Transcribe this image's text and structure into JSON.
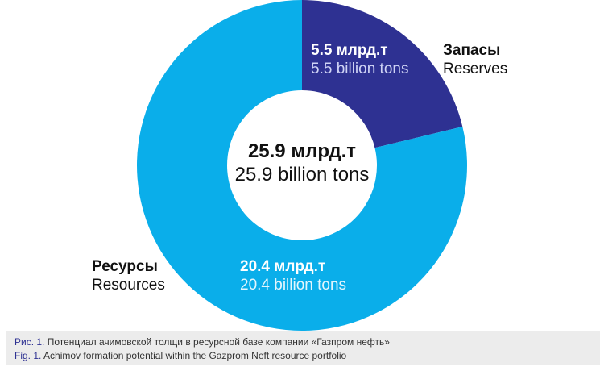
{
  "chart_data": {
    "type": "pie",
    "donut": true,
    "slices": [
      {
        "name": "Запасы / Reserves",
        "value": 5.5,
        "color": "#2e3192"
      },
      {
        "name": "Ресурсы / Resources",
        "value": 20.4,
        "color": "#0aaeea"
      }
    ],
    "total": 25.9
  },
  "center": {
    "ru": "25.9 млрд.т",
    "en": "25.9 billion tons"
  },
  "reserves": {
    "value_ru": "5.5 млрд.т",
    "value_en": "5.5 billion tons",
    "name_ru": "Запасы",
    "name_en": "Reserves"
  },
  "resources": {
    "value_ru": "20.4 млрд.т",
    "value_en": "20.4 billion tons",
    "name_ru": "Ресурсы",
    "name_en": "Resources"
  },
  "caption": {
    "ru_lead": "Рис. 1.",
    "ru_text": " Потенциал ачимовской толщи в ресурсной базе компании «Газпром нефть»",
    "en_lead": "Fig. 1.",
    "en_text": " Achimov formation potential within the Gazprom Neft resource portfolio"
  }
}
